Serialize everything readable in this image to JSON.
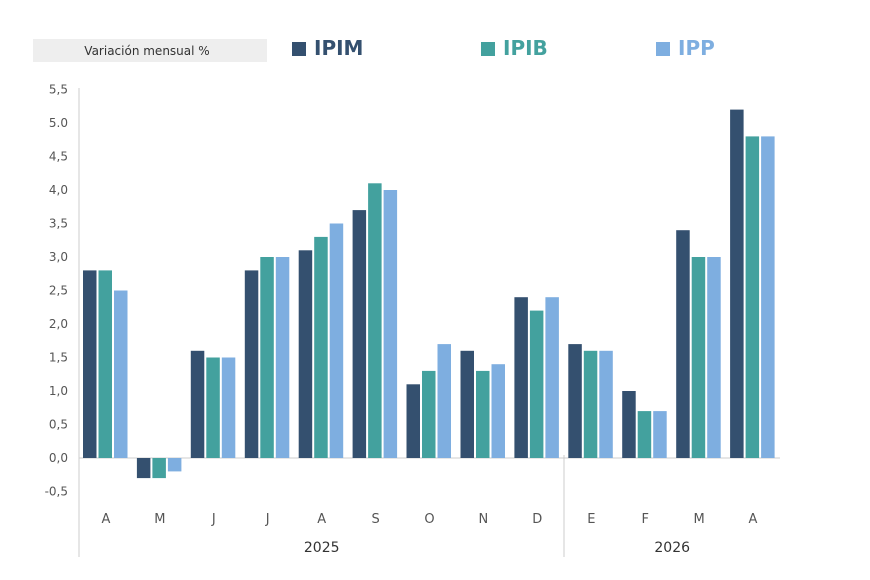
{
  "chart_data": {
    "type": "bar",
    "ylabel": "Variación mensual %",
    "categories": [
      "A",
      "M",
      "J",
      "J",
      "A",
      "S",
      "O",
      "N",
      "D",
      "E",
      "F",
      "M",
      "A"
    ],
    "groups": [
      {
        "label": "2025",
        "count": 9
      },
      {
        "label": "2026",
        "count": 4
      }
    ],
    "series": [
      {
        "name": "IPIM",
        "color": "#34506f",
        "values": [
          2.8,
          -0.3,
          1.6,
          2.8,
          3.1,
          3.7,
          1.1,
          1.6,
          2.4,
          1.7,
          1.0,
          3.4,
          5.2
        ]
      },
      {
        "name": "IPIB",
        "color": "#43a19e",
        "values": [
          2.8,
          -0.3,
          1.5,
          3.0,
          3.3,
          4.1,
          1.3,
          1.3,
          2.2,
          1.6,
          0.7,
          3.0,
          4.8
        ]
      },
      {
        "name": "IPP",
        "color": "#7eaee0",
        "values": [
          2.5,
          -0.2,
          1.5,
          3.0,
          3.5,
          4.0,
          1.7,
          1.4,
          2.4,
          1.6,
          0.7,
          3.0,
          4.8
        ]
      }
    ],
    "yticks": [
      "-0,5",
      "0,0",
      "0,5",
      "1,0",
      "1,5",
      "2,0",
      "2,5",
      "3,0",
      "3,5",
      "4,0",
      "4,5",
      "5.0",
      "5,5"
    ],
    "ylim": [
      -0.5,
      5.5
    ],
    "grid": false,
    "legend": "top"
  }
}
